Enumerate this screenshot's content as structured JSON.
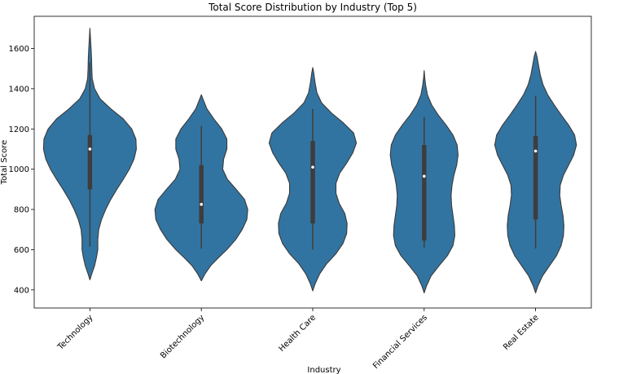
{
  "chart_data": {
    "type": "violin",
    "title": "Total Score Distribution by Industry (Top 5)",
    "xlabel": "Industry",
    "ylabel": "Total Score",
    "ylim": [
      310,
      1760
    ],
    "yticks": [
      400,
      600,
      800,
      1000,
      1200,
      1400,
      1600
    ],
    "color": "#3274a1",
    "categories": [
      "Technology",
      "Biotechnology",
      "Health Care",
      "Financial Services",
      "Real Estate"
    ],
    "violins": [
      {
        "category": "Technology",
        "min": 615,
        "q1": 900,
        "median": 1100,
        "q3": 1170,
        "max": 1530,
        "profile": [
          [
            450,
            0
          ],
          [
            480,
            0.04
          ],
          [
            520,
            0.1
          ],
          [
            560,
            0.14
          ],
          [
            600,
            0.17
          ],
          [
            650,
            0.17
          ],
          [
            700,
            0.19
          ],
          [
            750,
            0.25
          ],
          [
            800,
            0.34
          ],
          [
            850,
            0.45
          ],
          [
            900,
            0.58
          ],
          [
            950,
            0.72
          ],
          [
            1000,
            0.85
          ],
          [
            1050,
            0.95
          ],
          [
            1100,
            1.0
          ],
          [
            1150,
            0.99
          ],
          [
            1200,
            0.9
          ],
          [
            1250,
            0.72
          ],
          [
            1300,
            0.45
          ],
          [
            1350,
            0.22
          ],
          [
            1400,
            0.1
          ],
          [
            1450,
            0.05
          ],
          [
            1500,
            0.04
          ],
          [
            1550,
            0.035
          ],
          [
            1600,
            0.025
          ],
          [
            1650,
            0.012
          ],
          [
            1700,
            0
          ]
        ]
      },
      {
        "category": "Biotechnology",
        "min": 605,
        "q1": 730,
        "median": 825,
        "q3": 1020,
        "max": 1215,
        "profile": [
          [
            445,
            0
          ],
          [
            480,
            0.08
          ],
          [
            520,
            0.2
          ],
          [
            560,
            0.37
          ],
          [
            600,
            0.55
          ],
          [
            650,
            0.74
          ],
          [
            700,
            0.88
          ],
          [
            750,
            0.98
          ],
          [
            800,
            1.0
          ],
          [
            850,
            0.93
          ],
          [
            900,
            0.75
          ],
          [
            950,
            0.56
          ],
          [
            1000,
            0.46
          ],
          [
            1050,
            0.48
          ],
          [
            1100,
            0.55
          ],
          [
            1150,
            0.55
          ],
          [
            1200,
            0.44
          ],
          [
            1250,
            0.27
          ],
          [
            1300,
            0.12
          ],
          [
            1340,
            0.05
          ],
          [
            1370,
            0
          ]
        ]
      },
      {
        "category": "Health Care",
        "min": 600,
        "q1": 730,
        "median": 1010,
        "q3": 1140,
        "max": 1300,
        "profile": [
          [
            395,
            0
          ],
          [
            430,
            0.05
          ],
          [
            480,
            0.15
          ],
          [
            530,
            0.3
          ],
          [
            580,
            0.5
          ],
          [
            630,
            0.65
          ],
          [
            680,
            0.73
          ],
          [
            730,
            0.74
          ],
          [
            780,
            0.69
          ],
          [
            830,
            0.57
          ],
          [
            880,
            0.5
          ],
          [
            930,
            0.5
          ],
          [
            980,
            0.58
          ],
          [
            1030,
            0.73
          ],
          [
            1080,
            0.86
          ],
          [
            1130,
            0.94
          ],
          [
            1180,
            0.88
          ],
          [
            1230,
            0.66
          ],
          [
            1280,
            0.4
          ],
          [
            1330,
            0.19
          ],
          [
            1380,
            0.09
          ],
          [
            1430,
            0.05
          ],
          [
            1480,
            0.02
          ],
          [
            1505,
            0
          ]
        ]
      },
      {
        "category": "Financial Services",
        "min": 610,
        "q1": 645,
        "median": 965,
        "q3": 1120,
        "max": 1260,
        "profile": [
          [
            385,
            0
          ],
          [
            420,
            0.05
          ],
          [
            470,
            0.15
          ],
          [
            520,
            0.32
          ],
          [
            570,
            0.5
          ],
          [
            620,
            0.62
          ],
          [
            670,
            0.66
          ],
          [
            720,
            0.65
          ],
          [
            770,
            0.62
          ],
          [
            820,
            0.59
          ],
          [
            870,
            0.58
          ],
          [
            920,
            0.6
          ],
          [
            970,
            0.64
          ],
          [
            1020,
            0.7
          ],
          [
            1070,
            0.73
          ],
          [
            1120,
            0.71
          ],
          [
            1170,
            0.62
          ],
          [
            1220,
            0.47
          ],
          [
            1270,
            0.3
          ],
          [
            1320,
            0.16
          ],
          [
            1370,
            0.07
          ],
          [
            1420,
            0.03
          ],
          [
            1460,
            0.01
          ],
          [
            1490,
            0
          ]
        ]
      },
      {
        "category": "Real Estate",
        "min": 605,
        "q1": 750,
        "median": 1090,
        "q3": 1165,
        "max": 1365,
        "profile": [
          [
            385,
            0
          ],
          [
            420,
            0.05
          ],
          [
            470,
            0.15
          ],
          [
            520,
            0.3
          ],
          [
            570,
            0.45
          ],
          [
            620,
            0.55
          ],
          [
            670,
            0.6
          ],
          [
            720,
            0.61
          ],
          [
            770,
            0.59
          ],
          [
            820,
            0.55
          ],
          [
            870,
            0.52
          ],
          [
            920,
            0.53
          ],
          [
            970,
            0.6
          ],
          [
            1020,
            0.71
          ],
          [
            1070,
            0.82
          ],
          [
            1120,
            0.88
          ],
          [
            1170,
            0.84
          ],
          [
            1220,
            0.71
          ],
          [
            1270,
            0.55
          ],
          [
            1320,
            0.4
          ],
          [
            1370,
            0.26
          ],
          [
            1420,
            0.16
          ],
          [
            1470,
            0.1
          ],
          [
            1520,
            0.06
          ],
          [
            1560,
            0.03
          ],
          [
            1585,
            0
          ]
        ]
      }
    ]
  }
}
